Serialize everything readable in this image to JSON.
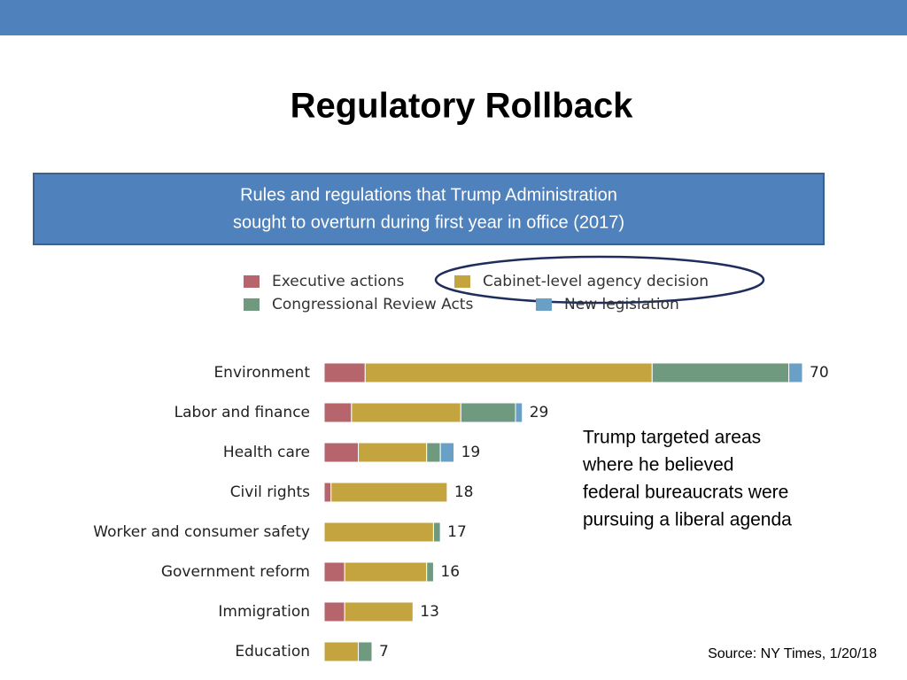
{
  "chart_data": {
    "type": "stacked-bar-horizontal",
    "title": "Regulatory Rollback",
    "subtitle": [
      "Rules and regulations that Trump Administration",
      "sought to overturn during first year in office (2017)"
    ],
    "categories": [
      "Environment",
      "Labor and finance",
      "Health care",
      "Civil rights",
      "Worker and consumer safety",
      "Government reform",
      "Immigration",
      "Education"
    ],
    "series": [
      {
        "name": "Executive actions",
        "color": "#b5656b",
        "values": [
          6,
          4,
          5,
          1,
          0,
          3,
          3,
          0
        ]
      },
      {
        "name": "Cabinet-level agency decision",
        "color": "#c4a43f",
        "values": [
          42,
          16,
          10,
          17,
          16,
          12,
          10,
          5
        ]
      },
      {
        "name": "Congressional Review Acts",
        "color": "#6f9a80",
        "values": [
          20,
          8,
          2,
          0,
          1,
          1,
          0,
          2
        ]
      },
      {
        "name": "New legislation",
        "color": "#6aa0c6",
        "values": [
          2,
          1,
          2,
          0,
          0,
          0,
          0,
          0
        ]
      }
    ],
    "totals": [
      70,
      29,
      19,
      18,
      17,
      16,
      13,
      7
    ],
    "annotation": [
      "Trump targeted areas",
      "where he believed",
      "federal bureaucrats were",
      "pursuing a liberal agenda"
    ],
    "source": "Source: NY Times, 1/20/18"
  }
}
